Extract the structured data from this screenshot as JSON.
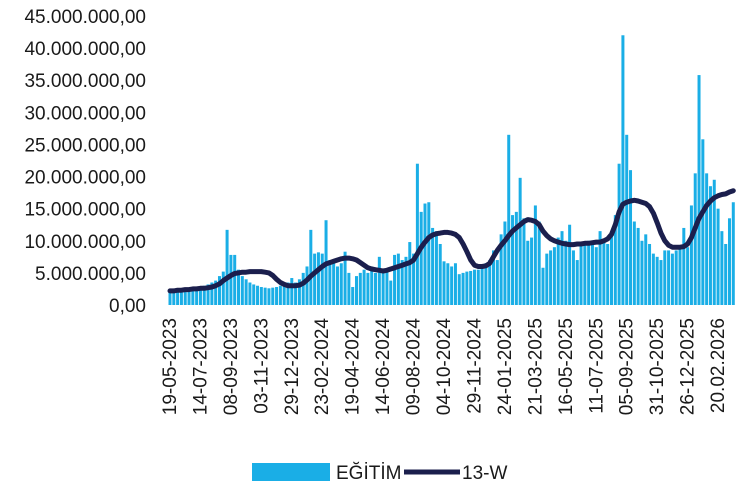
{
  "chart_data": {
    "type": "bar_line",
    "categories": [
      "19-05-2023",
      null,
      null,
      null,
      null,
      null,
      null,
      null,
      "14-07-2023",
      null,
      null,
      null,
      null,
      null,
      null,
      null,
      "08-09-2023",
      null,
      null,
      null,
      null,
      null,
      null,
      null,
      "03-11-2023",
      null,
      null,
      null,
      null,
      null,
      null,
      null,
      "29-12-2023",
      null,
      null,
      null,
      null,
      null,
      null,
      null,
      "23-02-2024",
      null,
      null,
      null,
      null,
      null,
      null,
      null,
      "19-04-2024",
      null,
      null,
      null,
      null,
      null,
      null,
      null,
      "14-06-2024",
      null,
      null,
      null,
      null,
      null,
      null,
      null,
      "09-08-2024",
      null,
      null,
      null,
      null,
      null,
      null,
      null,
      "04-10-2024",
      null,
      null,
      null,
      null,
      null,
      null,
      null,
      "29-11-2024",
      null,
      null,
      null,
      null,
      null,
      null,
      null,
      "24-01-2025",
      null,
      null,
      null,
      null,
      null,
      null,
      null,
      "21-03-2025",
      null,
      null,
      null,
      null,
      null,
      null,
      null,
      "16-05-2025",
      null,
      null,
      null,
      null,
      null,
      null,
      null,
      "11-07-2025",
      null,
      null,
      null,
      null,
      null,
      null,
      null,
      "05-09-2025",
      null,
      null,
      null,
      null,
      null,
      null,
      null,
      "31-10-2025",
      null,
      null,
      null,
      null,
      null,
      null,
      null,
      "26-12-2025",
      null,
      null,
      null,
      null,
      null,
      null,
      null,
      "20.02.2026",
      null,
      null,
      null,
      null
    ],
    "series": [
      {
        "name": "EĞİTİM",
        "type": "bar",
        "color": "#1aaee6",
        "values": [
          2000000,
          2200000,
          2300000,
          2500000,
          2600000,
          2700000,
          2500000,
          2600000,
          2800000,
          3000000,
          3200000,
          3500000,
          3800000,
          4500000,
          5200000,
          11700000,
          7800000,
          7800000,
          5500000,
          4500000,
          4000000,
          3500000,
          3200000,
          3000000,
          2800000,
          2700000,
          2600000,
          2700000,
          2800000,
          3000000,
          3200000,
          3500000,
          4200000,
          3500000,
          4000000,
          5000000,
          6000000,
          11700000,
          8000000,
          8200000,
          8000000,
          13200000,
          7000000,
          6500000,
          6000000,
          6500000,
          8300000,
          5000000,
          2800000,
          4500000,
          5000000,
          5500000,
          5000000,
          6000000,
          5000000,
          7500000,
          5000000,
          5200000,
          3800000,
          7800000,
          8000000,
          7000000,
          7500000,
          9800000,
          8000000,
          22000000,
          14500000,
          15800000,
          16000000,
          12000000,
          11500000,
          9500000,
          6800000,
          6500000,
          6000000,
          6500000,
          4800000,
          5000000,
          5200000,
          5300000,
          5500000,
          5500000,
          6000000,
          6500000,
          7000000,
          8500000,
          7000000,
          11000000,
          13000000,
          26500000,
          14000000,
          14500000,
          19800000,
          13500000,
          10000000,
          10500000,
          15500000,
          13000000,
          5800000,
          8000000,
          8500000,
          9000000,
          10500000,
          11500000,
          10000000,
          12500000,
          8500000,
          7000000,
          9800000,
          9500000,
          10000000,
          9500000,
          9000000,
          11500000,
          10000000,
          9500000,
          11000000,
          14000000,
          22000000,
          42000000,
          26500000,
          21000000,
          13000000,
          12000000,
          10000000,
          11000000,
          9500000,
          8000000,
          7500000,
          7000000,
          8500000,
          8500000,
          8000000,
          8500000,
          9000000,
          12000000,
          9000000,
          15500000,
          20500000,
          35800000,
          25800000,
          20500000,
          18500000,
          19500000,
          15000000,
          11500000,
          9500000,
          13500000,
          16000000
        ]
      },
      {
        "name": "13-W",
        "type": "line",
        "color": "#1b1f4d",
        "values": [
          2200000,
          2200000,
          2300000,
          2300000,
          2400000,
          2400000,
          2500000,
          2500000,
          2600000,
          2600000,
          2700000,
          2800000,
          3000000,
          3300000,
          3800000,
          4200000,
          4600000,
          4900000,
          5000000,
          5100000,
          5100000,
          5200000,
          5200000,
          5200000,
          5200000,
          5100000,
          5000000,
          4600000,
          4000000,
          3500000,
          3200000,
          3000000,
          3000000,
          3000000,
          3100000,
          3400000,
          3900000,
          4500000,
          5000000,
          5500000,
          6000000,
          6400000,
          6600000,
          6800000,
          7000000,
          7200000,
          7300000,
          7300000,
          7200000,
          7000000,
          6600000,
          6200000,
          5800000,
          5600000,
          5500000,
          5400000,
          5300000,
          5400000,
          5600000,
          5800000,
          6000000,
          6200000,
          6400000,
          6600000,
          7000000,
          8000000,
          9000000,
          9800000,
          10500000,
          10900000,
          11100000,
          11200000,
          11300000,
          11300000,
          11200000,
          11000000,
          10500000,
          9500000,
          8300000,
          7000000,
          6200000,
          6000000,
          6000000,
          6100000,
          6500000,
          7500000,
          8500000,
          9300000,
          10000000,
          10800000,
          11500000,
          12000000,
          12500000,
          13000000,
          13300000,
          13200000,
          13000000,
          12500000,
          11500000,
          10800000,
          10300000,
          10000000,
          9800000,
          9600000,
          9500000,
          9400000,
          9400000,
          9500000,
          9500000,
          9600000,
          9600000,
          9700000,
          9800000,
          9800000,
          10000000,
          10300000,
          11000000,
          12500000,
          14500000,
          15700000,
          16000000,
          16200000,
          16300000,
          16200000,
          16000000,
          15800000,
          15300000,
          14300000,
          12800000,
          11200000,
          10000000,
          9300000,
          9000000,
          9000000,
          9000000,
          9100000,
          9500000,
          10500000,
          12000000,
          13500000,
          14500000,
          15500000,
          16200000,
          16700000,
          17000000,
          17200000,
          17300000,
          17600000,
          17800000
        ]
      }
    ],
    "ylim": [
      0,
      45000000
    ],
    "yticks": [
      {
        "value": 0,
        "label": "0,00"
      },
      {
        "value": 5000000,
        "label": "5.000.000,00"
      },
      {
        "value": 10000000,
        "label": "10.000.000,00"
      },
      {
        "value": 15000000,
        "label": "15.000.000,00"
      },
      {
        "value": 20000000,
        "label": "20.000.000,00"
      },
      {
        "value": 25000000,
        "label": "25.000.000,00"
      },
      {
        "value": 30000000,
        "label": "30.000.000,00"
      },
      {
        "value": 35000000,
        "label": "35.000.000,00"
      },
      {
        "value": 40000000,
        "label": "40.000.000,00"
      },
      {
        "value": 45000000,
        "label": "45.000.000,00"
      }
    ],
    "legend": "bottom"
  }
}
